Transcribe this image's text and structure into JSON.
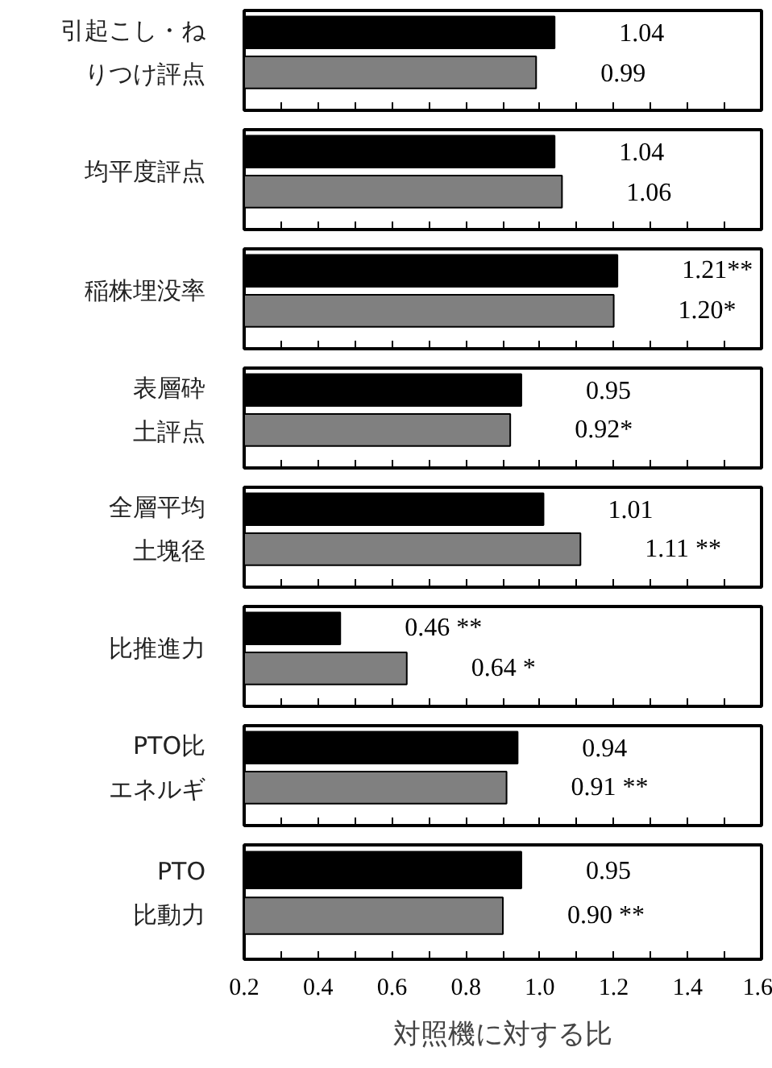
{
  "chart_data": [
    {
      "type": "bar",
      "orientation": "horizontal",
      "categories": [
        "引起こし・ねりつけ評点"
      ],
      "series": [
        {
          "color": "#000000",
          "values": [
            1.04
          ],
          "value_labels": [
            "1.04"
          ]
        },
        {
          "color": "#808080",
          "values": [
            0.99
          ],
          "value_labels": [
            "0.99"
          ]
        }
      ],
      "xlim": [
        0.2,
        1.6
      ],
      "xticks": [
        {
          "value": 0.2,
          "label": null
        },
        {
          "value": 0.3,
          "label": null
        },
        {
          "value": 0.4,
          "label": null
        },
        {
          "value": 0.5,
          "label": null
        },
        {
          "value": 0.6,
          "label": null
        },
        {
          "value": 0.7,
          "label": null
        },
        {
          "value": 0.8,
          "label": null
        },
        {
          "value": 0.9,
          "label": null
        },
        {
          "value": 1.0,
          "label": null
        },
        {
          "value": 1.1,
          "label": null
        },
        {
          "value": 1.2,
          "label": null
        },
        {
          "value": 1.3,
          "label": null
        },
        {
          "value": 1.4,
          "label": null
        },
        {
          "value": 1.5,
          "label": null
        },
        {
          "value": 1.6,
          "label": null
        }
      ]
    },
    {
      "type": "bar",
      "orientation": "horizontal",
      "categories": [
        "均平度評点"
      ],
      "series": [
        {
          "color": "#000000",
          "values": [
            1.04
          ],
          "value_labels": [
            "1.04"
          ]
        },
        {
          "color": "#808080",
          "values": [
            1.06
          ],
          "value_labels": [
            "1.06"
          ]
        }
      ],
      "xlim": [
        0.2,
        1.6
      ],
      "xticks": [
        {
          "value": 0.2,
          "label": null
        },
        {
          "value": 0.3,
          "label": null
        },
        {
          "value": 0.4,
          "label": null
        },
        {
          "value": 0.5,
          "label": null
        },
        {
          "value": 0.6,
          "label": null
        },
        {
          "value": 0.7,
          "label": null
        },
        {
          "value": 0.8,
          "label": null
        },
        {
          "value": 0.9,
          "label": null
        },
        {
          "value": 1.0,
          "label": null
        },
        {
          "value": 1.1,
          "label": null
        },
        {
          "value": 1.2,
          "label": null
        },
        {
          "value": 1.3,
          "label": null
        },
        {
          "value": 1.4,
          "label": null
        },
        {
          "value": 1.5,
          "label": null
        },
        {
          "value": 1.6,
          "label": null
        }
      ]
    },
    {
      "type": "bar",
      "orientation": "horizontal",
      "categories": [
        "稲株埋没率"
      ],
      "series": [
        {
          "color": "#000000",
          "values": [
            1.21
          ],
          "value_labels": [
            "1.21**"
          ]
        },
        {
          "color": "#808080",
          "values": [
            1.2
          ],
          "value_labels": [
            "1.20*"
          ]
        }
      ],
      "xlim": [
        0.2,
        1.6
      ],
      "xticks": [
        {
          "value": 0.2,
          "label": null
        },
        {
          "value": 0.3,
          "label": null
        },
        {
          "value": 0.4,
          "label": null
        },
        {
          "value": 0.5,
          "label": null
        },
        {
          "value": 0.6,
          "label": null
        },
        {
          "value": 0.7,
          "label": null
        },
        {
          "value": 0.8,
          "label": null
        },
        {
          "value": 0.9,
          "label": null
        },
        {
          "value": 1.0,
          "label": null
        },
        {
          "value": 1.1,
          "label": null
        },
        {
          "value": 1.2,
          "label": null
        },
        {
          "value": 1.3,
          "label": null
        },
        {
          "value": 1.4,
          "label": null
        },
        {
          "value": 1.5,
          "label": null
        },
        {
          "value": 1.6,
          "label": null
        }
      ]
    },
    {
      "type": "bar",
      "orientation": "horizontal",
      "categories": [
        "表層砕土評点"
      ],
      "series": [
        {
          "color": "#000000",
          "values": [
            0.95
          ],
          "value_labels": [
            "0.95"
          ]
        },
        {
          "color": "#808080",
          "values": [
            0.92
          ],
          "value_labels": [
            "0.92*"
          ]
        }
      ],
      "xlim": [
        0.2,
        1.6
      ],
      "xticks": [
        {
          "value": 0.2,
          "label": null
        },
        {
          "value": 0.3,
          "label": null
        },
        {
          "value": 0.4,
          "label": null
        },
        {
          "value": 0.5,
          "label": null
        },
        {
          "value": 0.6,
          "label": null
        },
        {
          "value": 0.7,
          "label": null
        },
        {
          "value": 0.8,
          "label": null
        },
        {
          "value": 0.9,
          "label": null
        },
        {
          "value": 1.0,
          "label": null
        },
        {
          "value": 1.1,
          "label": null
        },
        {
          "value": 1.2,
          "label": null
        },
        {
          "value": 1.3,
          "label": null
        },
        {
          "value": 1.4,
          "label": null
        },
        {
          "value": 1.5,
          "label": null
        },
        {
          "value": 1.6,
          "label": null
        }
      ]
    },
    {
      "type": "bar",
      "orientation": "horizontal",
      "categories": [
        "全層平均土塊径"
      ],
      "series": [
        {
          "color": "#000000",
          "values": [
            1.01
          ],
          "value_labels": [
            "1.01"
          ]
        },
        {
          "color": "#808080",
          "values": [
            1.11
          ],
          "value_labels": [
            "1.11 **"
          ]
        }
      ],
      "xlim": [
        0.2,
        1.6
      ],
      "xticks": [
        {
          "value": 0.2,
          "label": null
        },
        {
          "value": 0.3,
          "label": null
        },
        {
          "value": 0.4,
          "label": null
        },
        {
          "value": 0.5,
          "label": null
        },
        {
          "value": 0.6,
          "label": null
        },
        {
          "value": 0.7,
          "label": null
        },
        {
          "value": 0.8,
          "label": null
        },
        {
          "value": 0.9,
          "label": null
        },
        {
          "value": 1.0,
          "label": null
        },
        {
          "value": 1.1,
          "label": null
        },
        {
          "value": 1.2,
          "label": null
        },
        {
          "value": 1.3,
          "label": null
        },
        {
          "value": 1.4,
          "label": null
        },
        {
          "value": 1.5,
          "label": null
        },
        {
          "value": 1.6,
          "label": null
        }
      ]
    },
    {
      "type": "bar",
      "orientation": "horizontal",
      "categories": [
        "比推進力"
      ],
      "series": [
        {
          "color": "#000000",
          "values": [
            0.46
          ],
          "value_labels": [
            "0.46 **"
          ]
        },
        {
          "color": "#808080",
          "values": [
            0.64
          ],
          "value_labels": [
            "0.64 *"
          ]
        }
      ],
      "xlim": [
        0.2,
        1.6
      ],
      "xticks": [
        {
          "value": 0.2,
          "label": null
        },
        {
          "value": 0.3,
          "label": null
        },
        {
          "value": 0.4,
          "label": null
        },
        {
          "value": 0.5,
          "label": null
        },
        {
          "value": 0.6,
          "label": null
        },
        {
          "value": 0.7,
          "label": null
        },
        {
          "value": 0.8,
          "label": null
        },
        {
          "value": 0.9,
          "label": null
        },
        {
          "value": 1.0,
          "label": null
        },
        {
          "value": 1.1,
          "label": null
        },
        {
          "value": 1.2,
          "label": null
        },
        {
          "value": 1.3,
          "label": null
        },
        {
          "value": 1.4,
          "label": null
        },
        {
          "value": 1.5,
          "label": null
        },
        {
          "value": 1.6,
          "label": null
        }
      ]
    },
    {
      "type": "bar",
      "orientation": "horizontal",
      "categories": [
        "PTO比エネルギ"
      ],
      "series": [
        {
          "color": "#000000",
          "values": [
            0.94
          ],
          "value_labels": [
            "0.94"
          ]
        },
        {
          "color": "#808080",
          "values": [
            0.91
          ],
          "value_labels": [
            "0.91 **"
          ]
        }
      ],
      "xlim": [
        0.2,
        1.6
      ],
      "xticks": [
        {
          "value": 0.2,
          "label": null
        },
        {
          "value": 0.3,
          "label": null
        },
        {
          "value": 0.4,
          "label": null
        },
        {
          "value": 0.5,
          "label": null
        },
        {
          "value": 0.6,
          "label": null
        },
        {
          "value": 0.7,
          "label": null
        },
        {
          "value": 0.8,
          "label": null
        },
        {
          "value": 0.9,
          "label": null
        },
        {
          "value": 1.0,
          "label": null
        },
        {
          "value": 1.1,
          "label": null
        },
        {
          "value": 1.2,
          "label": null
        },
        {
          "value": 1.3,
          "label": null
        },
        {
          "value": 1.4,
          "label": null
        },
        {
          "value": 1.5,
          "label": null
        },
        {
          "value": 1.6,
          "label": null
        }
      ]
    },
    {
      "type": "bar",
      "orientation": "horizontal",
      "categories": [
        "PTO比動力"
      ],
      "series": [
        {
          "color": "#000000",
          "values": [
            0.95
          ],
          "value_labels": [
            "0.95"
          ]
        },
        {
          "color": "#808080",
          "values": [
            0.9
          ],
          "value_labels": [
            "0.90 **"
          ]
        }
      ],
      "xlim": [
        0.2,
        1.6
      ],
      "xticks": [
        0.2,
        {
          "value": 0.3,
          "label": null
        },
        0.4,
        {
          "value": 0.5,
          "label": null
        },
        0.6,
        {
          "value": 0.7,
          "label": null
        },
        0.8,
        {
          "value": 0.9,
          "label": null
        },
        {
          "value": 1.0,
          "label": "1.0"
        },
        {
          "value": 1.1,
          "label": null
        },
        1.2,
        {
          "value": 1.3,
          "label": null
        },
        1.4,
        {
          "value": 1.5,
          "label": null
        },
        1.6
      ],
      "xlabel": "対照機に対する比"
    }
  ]
}
